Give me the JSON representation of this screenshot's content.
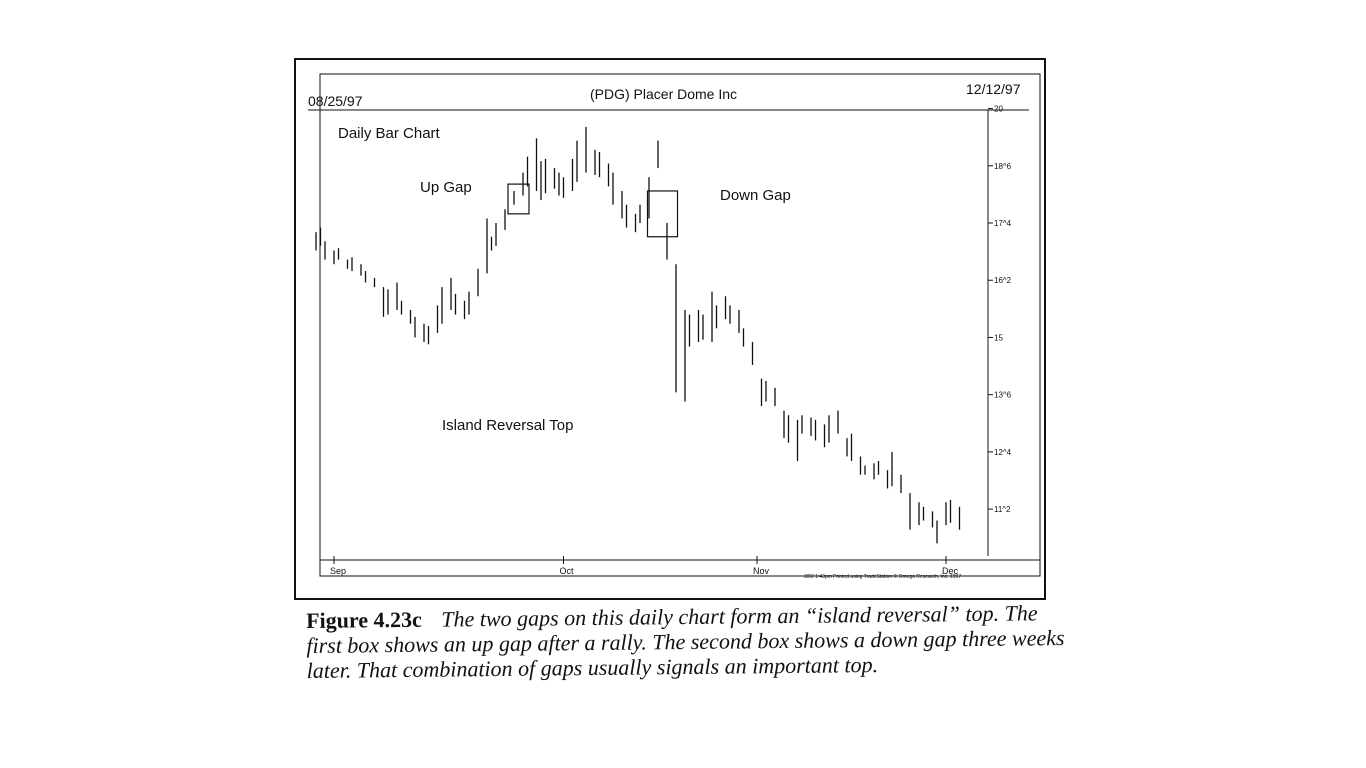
{
  "chart_data": {
    "type": "ohlc-bar",
    "header": {
      "start_date": "08/25/97",
      "title": "(PDG) Placer Dome Inc",
      "end_date": "12/12/97"
    },
    "subtitle": "Daily Bar Chart",
    "annotations": [
      "Up Gap",
      "Down Gap",
      "Island Reversal Top"
    ],
    "y_ticks": [
      "20",
      "18^6",
      "17^4",
      "16^2",
      "15",
      "13^6",
      "12^4",
      "11^2"
    ],
    "y_tick_values": [
      20,
      18.75,
      17.5,
      16.25,
      15,
      13.75,
      12.5,
      11.25
    ],
    "ylim": [
      10.4,
      20.1
    ],
    "x_months": [
      "Sep",
      "Oct",
      "Nov",
      "Dec"
    ],
    "month_start_bars": [
      4,
      55,
      98,
      140
    ],
    "gap_boxes": [
      {
        "label": "Up Gap",
        "bars": [
          44,
          46
        ],
        "price": [
          17.7,
          18.35
        ]
      },
      {
        "label": "Down Gap",
        "bars": [
          75,
          79
        ],
        "price": [
          17.2,
          18.2
        ]
      }
    ],
    "footer_note": "3/02 1:43pm Printed using TradeStation © Omega Research, Inc. 1997",
    "bars": [
      {
        "x": 0,
        "high": 17.3,
        "low": 16.9
      },
      {
        "x": 1,
        "high": 17.4,
        "low": 17.0
      },
      {
        "x": 2,
        "high": 17.1,
        "low": 16.7
      },
      {
        "x": 4,
        "high": 16.9,
        "low": 16.6
      },
      {
        "x": 5,
        "high": 16.95,
        "low": 16.7
      },
      {
        "x": 7,
        "high": 16.7,
        "low": 16.5
      },
      {
        "x": 8,
        "high": 16.75,
        "low": 16.45
      },
      {
        "x": 10,
        "high": 16.6,
        "low": 16.35
      },
      {
        "x": 11,
        "high": 16.45,
        "low": 16.2
      },
      {
        "x": 13,
        "high": 16.3,
        "low": 16.1
      },
      {
        "x": 15,
        "high": 16.1,
        "low": 15.45
      },
      {
        "x": 16,
        "high": 16.05,
        "low": 15.5
      },
      {
        "x": 18,
        "high": 16.2,
        "low": 15.6
      },
      {
        "x": 19,
        "high": 15.8,
        "low": 15.5
      },
      {
        "x": 21,
        "high": 15.6,
        "low": 15.3
      },
      {
        "x": 22,
        "high": 15.45,
        "low": 15.0
      },
      {
        "x": 24,
        "high": 15.3,
        "low": 14.9
      },
      {
        "x": 25,
        "high": 15.25,
        "low": 14.85
      },
      {
        "x": 27,
        "high": 15.7,
        "low": 15.1
      },
      {
        "x": 28,
        "high": 16.1,
        "low": 15.3
      },
      {
        "x": 30,
        "high": 16.3,
        "low": 15.6
      },
      {
        "x": 31,
        "high": 15.95,
        "low": 15.5
      },
      {
        "x": 33,
        "high": 15.8,
        "low": 15.4
      },
      {
        "x": 34,
        "high": 16.0,
        "low": 15.5
      },
      {
        "x": 36,
        "high": 16.5,
        "low": 15.9
      },
      {
        "x": 38,
        "high": 17.6,
        "low": 16.4
      },
      {
        "x": 39,
        "high": 17.2,
        "low": 16.9
      },
      {
        "x": 40,
        "high": 17.5,
        "low": 17.0
      },
      {
        "x": 42,
        "high": 17.8,
        "low": 17.35
      },
      {
        "x": 44,
        "high": 18.2,
        "low": 17.9
      },
      {
        "x": 46,
        "high": 18.6,
        "low": 18.1
      },
      {
        "x": 47,
        "high": 18.95,
        "low": 18.3
      },
      {
        "x": 49,
        "high": 19.35,
        "low": 18.2
      },
      {
        "x": 50,
        "high": 18.85,
        "low": 18.0
      },
      {
        "x": 51,
        "high": 18.9,
        "low": 18.15
      },
      {
        "x": 53,
        "high": 18.7,
        "low": 18.25
      },
      {
        "x": 54,
        "high": 18.6,
        "low": 18.1
      },
      {
        "x": 55,
        "high": 18.5,
        "low": 18.05
      },
      {
        "x": 57,
        "high": 18.9,
        "low": 18.2
      },
      {
        "x": 58,
        "high": 19.3,
        "low": 18.4
      },
      {
        "x": 60,
        "high": 19.6,
        "low": 18.6
      },
      {
        "x": 62,
        "high": 19.1,
        "low": 18.55
      },
      {
        "x": 63,
        "high": 19.05,
        "low": 18.5
      },
      {
        "x": 65,
        "high": 18.8,
        "low": 18.3
      },
      {
        "x": 66,
        "high": 18.6,
        "low": 17.9
      },
      {
        "x": 68,
        "high": 18.2,
        "low": 17.6
      },
      {
        "x": 69,
        "high": 17.9,
        "low": 17.4
      },
      {
        "x": 71,
        "high": 17.7,
        "low": 17.3
      },
      {
        "x": 72,
        "high": 17.9,
        "low": 17.5
      },
      {
        "x": 74,
        "high": 18.5,
        "low": 17.6
      },
      {
        "x": 76,
        "high": 19.3,
        "low": 18.7
      },
      {
        "x": 78,
        "high": 17.5,
        "low": 16.7
      },
      {
        "x": 80,
        "high": 16.6,
        "low": 13.8
      },
      {
        "x": 82,
        "high": 15.6,
        "low": 13.6
      },
      {
        "x": 83,
        "high": 15.5,
        "low": 14.8
      },
      {
        "x": 85,
        "high": 15.6,
        "low": 14.9
      },
      {
        "x": 86,
        "high": 15.5,
        "low": 14.95
      },
      {
        "x": 88,
        "high": 16.0,
        "low": 14.9
      },
      {
        "x": 89,
        "high": 15.7,
        "low": 15.2
      },
      {
        "x": 91,
        "high": 15.9,
        "low": 15.4
      },
      {
        "x": 92,
        "high": 15.7,
        "low": 15.3
      },
      {
        "x": 94,
        "high": 15.6,
        "low": 15.1
      },
      {
        "x": 95,
        "high": 15.2,
        "low": 14.8
      },
      {
        "x": 97,
        "high": 14.9,
        "low": 14.4
      },
      {
        "x": 99,
        "high": 14.1,
        "low": 13.5
      },
      {
        "x": 100,
        "high": 14.05,
        "low": 13.6
      },
      {
        "x": 102,
        "high": 13.9,
        "low": 13.5
      },
      {
        "x": 104,
        "high": 13.4,
        "low": 12.8
      },
      {
        "x": 105,
        "high": 13.3,
        "low": 12.7
      },
      {
        "x": 107,
        "high": 13.2,
        "low": 12.3
      },
      {
        "x": 108,
        "high": 13.3,
        "low": 12.9
      },
      {
        "x": 110,
        "high": 13.25,
        "low": 12.85
      },
      {
        "x": 111,
        "high": 13.2,
        "low": 12.75
      },
      {
        "x": 113,
        "high": 13.1,
        "low": 12.6
      },
      {
        "x": 114,
        "high": 13.3,
        "low": 12.7
      },
      {
        "x": 116,
        "high": 13.4,
        "low": 12.9
      },
      {
        "x": 118,
        "high": 12.8,
        "low": 12.4
      },
      {
        "x": 119,
        "high": 12.9,
        "low": 12.3
      },
      {
        "x": 121,
        "high": 12.4,
        "low": 12.0
      },
      {
        "x": 122,
        "high": 12.2,
        "low": 12.0
      },
      {
        "x": 124,
        "high": 12.25,
        "low": 11.9
      },
      {
        "x": 125,
        "high": 12.3,
        "low": 12.0
      },
      {
        "x": 127,
        "high": 12.1,
        "low": 11.7
      },
      {
        "x": 128,
        "high": 12.5,
        "low": 11.75
      },
      {
        "x": 130,
        "high": 12.0,
        "low": 11.6
      },
      {
        "x": 132,
        "high": 11.6,
        "low": 10.8
      },
      {
        "x": 134,
        "high": 11.4,
        "low": 10.9
      },
      {
        "x": 135,
        "high": 11.3,
        "low": 11.0
      },
      {
        "x": 137,
        "high": 11.2,
        "low": 10.85
      },
      {
        "x": 138,
        "high": 11.0,
        "low": 10.5
      },
      {
        "x": 140,
        "high": 11.4,
        "low": 10.9
      },
      {
        "x": 141,
        "high": 11.45,
        "low": 10.95
      },
      {
        "x": 143,
        "high": 11.3,
        "low": 10.8
      }
    ]
  },
  "caption": {
    "figure_label": "Figure 4.23c",
    "text": "The two gaps on this daily chart form an “island reversal” top. The first box shows an up gap after a rally. The second box shows a down gap three weeks later. That combination of gaps usually signals an important top."
  }
}
